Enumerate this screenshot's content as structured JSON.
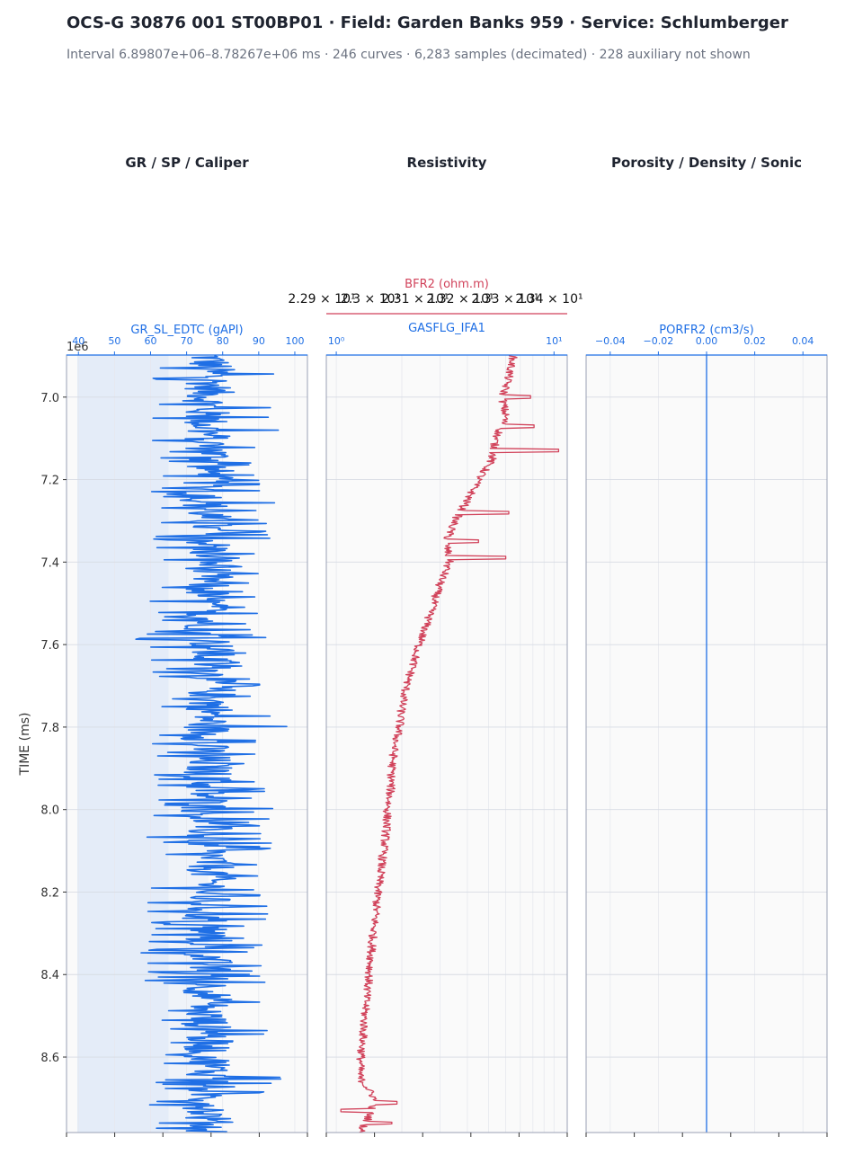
{
  "header": {
    "title": "OCS-G 30876 001 ST00BP01 · Field: Garden Banks 959 · Service: Schlumberger",
    "subtitle": "Interval 6.89807e+06–8.78267e+06 ms · 246 curves · 6,283 samples (decimated) · 228 auxiliary not shown"
  },
  "tracks": [
    {
      "title": "GR / SP / Caliper"
    },
    {
      "title": "Resistivity"
    },
    {
      "title": "Porosity / Density / Sonic"
    }
  ],
  "colors": {
    "gr": "#1f6fe5",
    "res": "#d1425a",
    "por": "#1f6fe5",
    "fill": "#e4ecf8",
    "grid": "#d7dbe3",
    "axis": "#9aa0b4"
  },
  "chart_data": [
    {
      "type": "line",
      "track": "GR / SP / Caliper",
      "ylabel": "TIME (ms)",
      "y_offset_label": "1e6",
      "ylim": [
        6.898,
        8.783
      ],
      "y_ticks": [
        7.0,
        7.2,
        7.4,
        7.6,
        7.8,
        8.0,
        8.2,
        8.4,
        8.6
      ],
      "y_tick_labels": [
        "7.0",
        "7.2",
        "7.4",
        "7.6",
        "7.8",
        "8.0",
        "8.2",
        "8.4",
        "8.6"
      ],
      "xlabel": "GR_SL_EDTC (gAPI)",
      "xlim": [
        36.7,
        103.5
      ],
      "x_ticks": [
        40,
        50,
        60,
        70,
        80,
        90,
        100
      ],
      "x_tick_labels": [
        "40",
        "50",
        "60",
        "70",
        "80",
        "90",
        "100"
      ],
      "fill_below": 40,
      "series": [
        {
          "name": "GR_SL_EDTC",
          "depth": [
            6.9,
            6.95,
            7.0,
            7.05,
            7.1,
            7.15,
            7.2,
            7.25,
            7.3,
            7.35,
            7.4,
            7.45,
            7.5,
            7.55,
            7.6,
            7.65,
            7.7,
            7.75,
            7.8,
            7.85,
            7.9,
            7.95,
            8.0,
            8.05,
            8.1,
            8.15,
            8.2,
            8.25,
            8.3,
            8.35,
            8.4,
            8.45,
            8.5,
            8.55,
            8.6,
            8.65,
            8.7,
            8.78
          ],
          "center": [
            76,
            77,
            76,
            75,
            76,
            77,
            76,
            75,
            76,
            76,
            77,
            76,
            75,
            76,
            77,
            76,
            77,
            77,
            76,
            75,
            76,
            76,
            75,
            76,
            76,
            77,
            76,
            75,
            76,
            76,
            76,
            76,
            75,
            76,
            76,
            77,
            76,
            76
          ],
          "min": [
            62,
            60,
            59,
            60,
            58,
            61,
            57,
            60,
            58,
            59,
            62,
            60,
            59,
            60,
            54,
            60,
            59,
            61,
            56,
            60,
            62,
            58,
            60,
            56,
            60,
            61,
            58,
            59,
            60,
            55,
            58,
            59,
            61,
            60,
            59,
            61,
            57,
            60
          ],
          "max": [
            92,
            95,
            94,
            95,
            96,
            90,
            92,
            95,
            94,
            93,
            90,
            91,
            90,
            92,
            93,
            90,
            92,
            91,
            100,
            92,
            91,
            93,
            94,
            92,
            95,
            94,
            92,
            95,
            90,
            92,
            93,
            95,
            96,
            94,
            95,
            97,
            94,
            96
          ]
        }
      ]
    },
    {
      "type": "line",
      "track": "Resistivity",
      "xscale": "log",
      "xlabel": "GASFLG_IFA1",
      "xlim": [
        0.9,
        11.5
      ],
      "x_ticks": [
        1,
        10
      ],
      "x_tick_labels": [
        "10⁰",
        "10¹"
      ],
      "secondary_axis": {
        "label": "BFR2 (ohm.m)",
        "tick_labels": [
          "2.29 × 10¹",
          "2.3 × 10¹",
          "2.31 × 10¹",
          "2.32 × 10¹",
          "2.33 × 10¹",
          "2.34 × 10¹"
        ]
      },
      "series": [
        {
          "name": "BFR2",
          "depth": [
            6.9,
            6.95,
            7.0,
            7.05,
            7.1,
            7.15,
            7.2,
            7.25,
            7.3,
            7.35,
            7.4,
            7.45,
            7.5,
            7.55,
            7.6,
            7.65,
            7.7,
            7.75,
            7.8,
            7.85,
            7.9,
            7.95,
            8.0,
            8.05,
            8.1,
            8.15,
            8.2,
            8.25,
            8.3,
            8.35,
            8.4,
            8.45,
            8.5,
            8.55,
            8.6,
            8.65,
            8.7,
            8.75,
            8.78
          ],
          "value": [
            6.5,
            6.2,
            5.8,
            6.0,
            5.4,
            5.2,
            4.5,
            4.0,
            3.5,
            3.2,
            3.3,
            3.0,
            2.8,
            2.6,
            2.4,
            2.25,
            2.1,
            2.0,
            1.95,
            1.85,
            1.8,
            1.78,
            1.72,
            1.7,
            1.65,
            1.6,
            1.55,
            1.52,
            1.48,
            1.45,
            1.42,
            1.38,
            1.35,
            1.33,
            1.3,
            1.28,
            1.5,
            1.4,
            1.3
          ],
          "spikes": [
            {
              "depth": 7.0,
              "value": 7.8
            },
            {
              "depth": 7.07,
              "value": 8.1
            },
            {
              "depth": 7.13,
              "value": 10.5
            },
            {
              "depth": 7.28,
              "value": 6.2
            },
            {
              "depth": 7.35,
              "value": 4.5
            },
            {
              "depth": 7.39,
              "value": 6.0
            },
            {
              "depth": 8.71,
              "value": 1.9
            },
            {
              "depth": 8.73,
              "value": 1.05
            },
            {
              "depth": 8.76,
              "value": 1.8
            }
          ]
        }
      ]
    },
    {
      "type": "line",
      "track": "Porosity / Density / Sonic",
      "xlabel": "PORFR2 (cm3/s)",
      "xlim": [
        -0.05,
        0.05
      ],
      "x_ticks": [
        -0.04,
        -0.02,
        0.0,
        0.02,
        0.04
      ],
      "x_tick_labels": [
        "−0.04",
        "−0.02",
        "0.00",
        "0.02",
        "0.04"
      ],
      "series": [
        {
          "name": "PORFR2",
          "value": 0.0
        }
      ]
    }
  ]
}
